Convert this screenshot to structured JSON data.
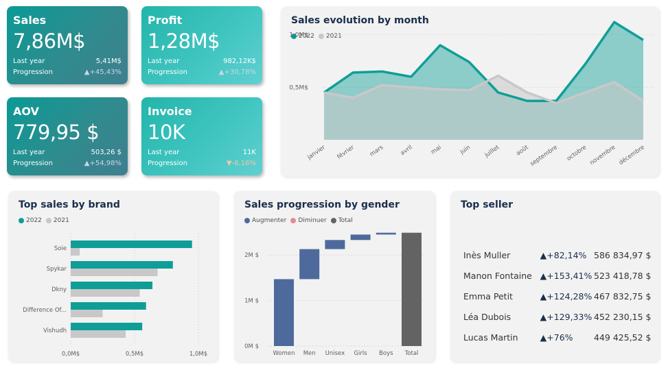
{
  "kpis": {
    "sales": {
      "title": "Sales",
      "value": "7,86M$",
      "last_year_label": "Last year",
      "last_year": "5,41M$",
      "progression_label": "Progression",
      "progression": "▲+45,43%"
    },
    "profit": {
      "title": "Profit",
      "value": "1,28M$",
      "last_year_label": "Last year",
      "last_year": "982,12K$",
      "progression_label": "Progression",
      "progression": "▲+30,78%"
    },
    "aov": {
      "title": "AOV",
      "value": "779,95 $",
      "last_year_label": "Last year",
      "last_year": "503,26 $",
      "progression_label": "Progression",
      "progression": "▲+54,98%"
    },
    "invoice": {
      "title": "Invoice",
      "value": "10K",
      "last_year_label": "Last year",
      "last_year": "11K",
      "progression_label": "Progression",
      "progression": "▼-6,16%"
    }
  },
  "colors": {
    "teal": "#0f9e97",
    "grey": "#c8c8c8",
    "increase": "#4e6a9c",
    "decrease": "#e68a92",
    "total": "#636363"
  },
  "chart_data": [
    {
      "type": "area",
      "title": "Sales evolution by month",
      "categories": [
        "janvier",
        "février",
        "mars",
        "avril",
        "mai",
        "juin",
        "juillet",
        "août",
        "septembre",
        "octobre",
        "novembre",
        "décembre"
      ],
      "series": [
        {
          "name": "2022",
          "values": [
            0.45,
            0.64,
            0.65,
            0.6,
            0.9,
            0.74,
            0.45,
            0.37,
            0.37,
            0.72,
            1.12,
            0.95
          ]
        },
        {
          "name": "2021",
          "values": [
            0.45,
            0.4,
            0.52,
            0.5,
            0.48,
            0.47,
            0.61,
            0.45,
            0.35,
            0.45,
            0.55,
            0.37
          ]
        }
      ],
      "yticks": [
        "1,0M$",
        "0,5M$"
      ],
      "ylim": [
        0,
        1.2
      ],
      "legend": "top-left"
    },
    {
      "type": "bar",
      "orientation": "horizontal",
      "title": "Top sales by brand",
      "categories": [
        "Soie",
        "Spykar",
        "Dkny",
        "Difference Of...",
        "Vishudh"
      ],
      "series": [
        {
          "name": "2022",
          "values": [
            0.95,
            0.8,
            0.64,
            0.59,
            0.56
          ]
        },
        {
          "name": "2021",
          "values": [
            0.07,
            0.68,
            0.54,
            0.25,
            0.43
          ]
        }
      ],
      "xticks": [
        "0,0M$",
        "0,5M$",
        "1,0M$"
      ],
      "xlim": [
        0,
        1.0
      ],
      "legend": "top-left"
    },
    {
      "type": "bar",
      "subtype": "waterfall",
      "title": "Sales progression by gender",
      "categories": [
        "Women",
        "Men",
        "Unisex",
        "Girls",
        "Boys",
        "Total"
      ],
      "steps": [
        {
          "kind": "increase",
          "start": 0,
          "end": 1.47
        },
        {
          "kind": "increase",
          "start": 1.47,
          "end": 2.13
        },
        {
          "kind": "increase",
          "start": 2.13,
          "end": 2.33
        },
        {
          "kind": "increase",
          "start": 2.33,
          "end": 2.45
        },
        {
          "kind": "increase",
          "start": 2.45,
          "end": 2.49
        },
        {
          "kind": "total",
          "start": 0,
          "end": 2.49
        }
      ],
      "legend_items": [
        {
          "name": "Augmenter",
          "kind": "increase"
        },
        {
          "name": "Diminuer",
          "kind": "decrease"
        },
        {
          "name": "Total",
          "kind": "total"
        }
      ],
      "yticks": [
        "2M $",
        "1M $",
        "0M $"
      ],
      "ylim": [
        0,
        2.5
      ]
    }
  ],
  "top_seller": {
    "title": "Top seller",
    "rows": [
      {
        "name": "Inès Muller",
        "progression": "▲+82,14%",
        "amount": "586 834,97 $"
      },
      {
        "name": "Manon Fontaine",
        "progression": "▲+153,41%",
        "amount": "523 418,78 $"
      },
      {
        "name": "Emma Petit",
        "progression": "▲+124,28%",
        "amount": "467 832,75 $"
      },
      {
        "name": "Léa Dubois",
        "progression": "▲+129,33%",
        "amount": "452 230,15 $"
      },
      {
        "name": "Lucas Martin",
        "progression": "▲+76%",
        "amount": "449 425,52 $"
      }
    ]
  }
}
